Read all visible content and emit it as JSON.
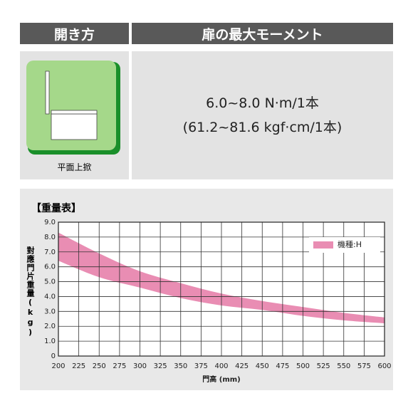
{
  "table": {
    "header": [
      "開き方",
      "扉の最大モーメント"
    ],
    "opening_caption": "平面上掀",
    "moment_lines": [
      "6.0~8.0 N·m/1本",
      "(61.2~81.6 kgf·cm/1本)"
    ]
  },
  "chart_data": {
    "type": "band",
    "title": "【重量表】",
    "y_label": "對應門片重量(kg)",
    "x_label": "門高 (mm)",
    "x": [
      200,
      250,
      300,
      350,
      400,
      450,
      500,
      550,
      600
    ],
    "series": [
      {
        "name": "機種:H",
        "color": "#e98db3",
        "upper": [
          8.3,
          6.9,
          5.7,
          4.9,
          4.2,
          3.7,
          3.3,
          2.9,
          2.6
        ],
        "lower": [
          6.4,
          5.3,
          4.6,
          3.9,
          3.4,
          3.1,
          2.7,
          2.4,
          2.2
        ]
      }
    ],
    "xlim": [
      200,
      600
    ],
    "xticks": [
      200,
      225,
      250,
      275,
      300,
      325,
      350,
      375,
      400,
      425,
      450,
      475,
      500,
      525,
      550,
      575,
      600
    ],
    "ylim": [
      0,
      9
    ],
    "yticks": [
      0,
      {
        "value": 1,
        "label": "1.0"
      },
      {
        "value": 2,
        "label": "2.0"
      },
      {
        "value": 3,
        "label": "3.0"
      },
      {
        "value": 4,
        "label": "4.0"
      },
      {
        "value": 5,
        "label": "5.0"
      },
      {
        "value": 6,
        "label": "6.0"
      },
      {
        "value": 7,
        "label": "7.0"
      },
      {
        "value": 8,
        "label": "8.0"
      },
      {
        "value": 9,
        "label": "9.0"
      }
    ],
    "grid": true,
    "legend": "top-right"
  }
}
